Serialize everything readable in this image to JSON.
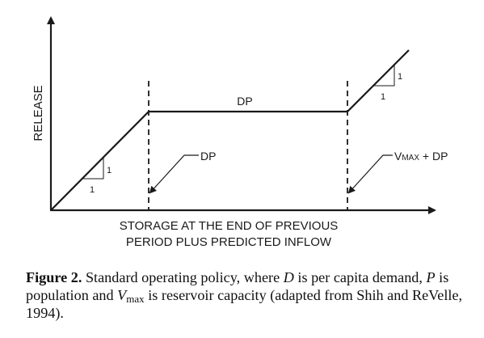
{
  "diagram": {
    "y_axis_label": "RELEASE",
    "segment_label": "DP",
    "left_marker_label": "DP",
    "right_marker_label_v": "V",
    "right_marker_label_max": "MAX",
    "right_marker_label_rest": " + DP",
    "x_axis_label_line1": "STORAGE AT THE END OF PREVIOUS",
    "x_axis_label_line2": "PERIOD PLUS PREDICTED INFLOW",
    "slope_left_run": "1",
    "slope_left_rise": "1",
    "slope_right_run": "1",
    "slope_right_rise": "1"
  },
  "caption": {
    "figure_label": "Figure 2.",
    "part1": " Standard operating policy, where ",
    "var_d": "D",
    "part2": " is per capita demand, ",
    "var_p": "P",
    "part3": " is population and ",
    "var_v": "V",
    "var_v_sub": "max",
    "part4": " is reservoir capacity (adapted from Shih and ReVelle, 1994)."
  }
}
